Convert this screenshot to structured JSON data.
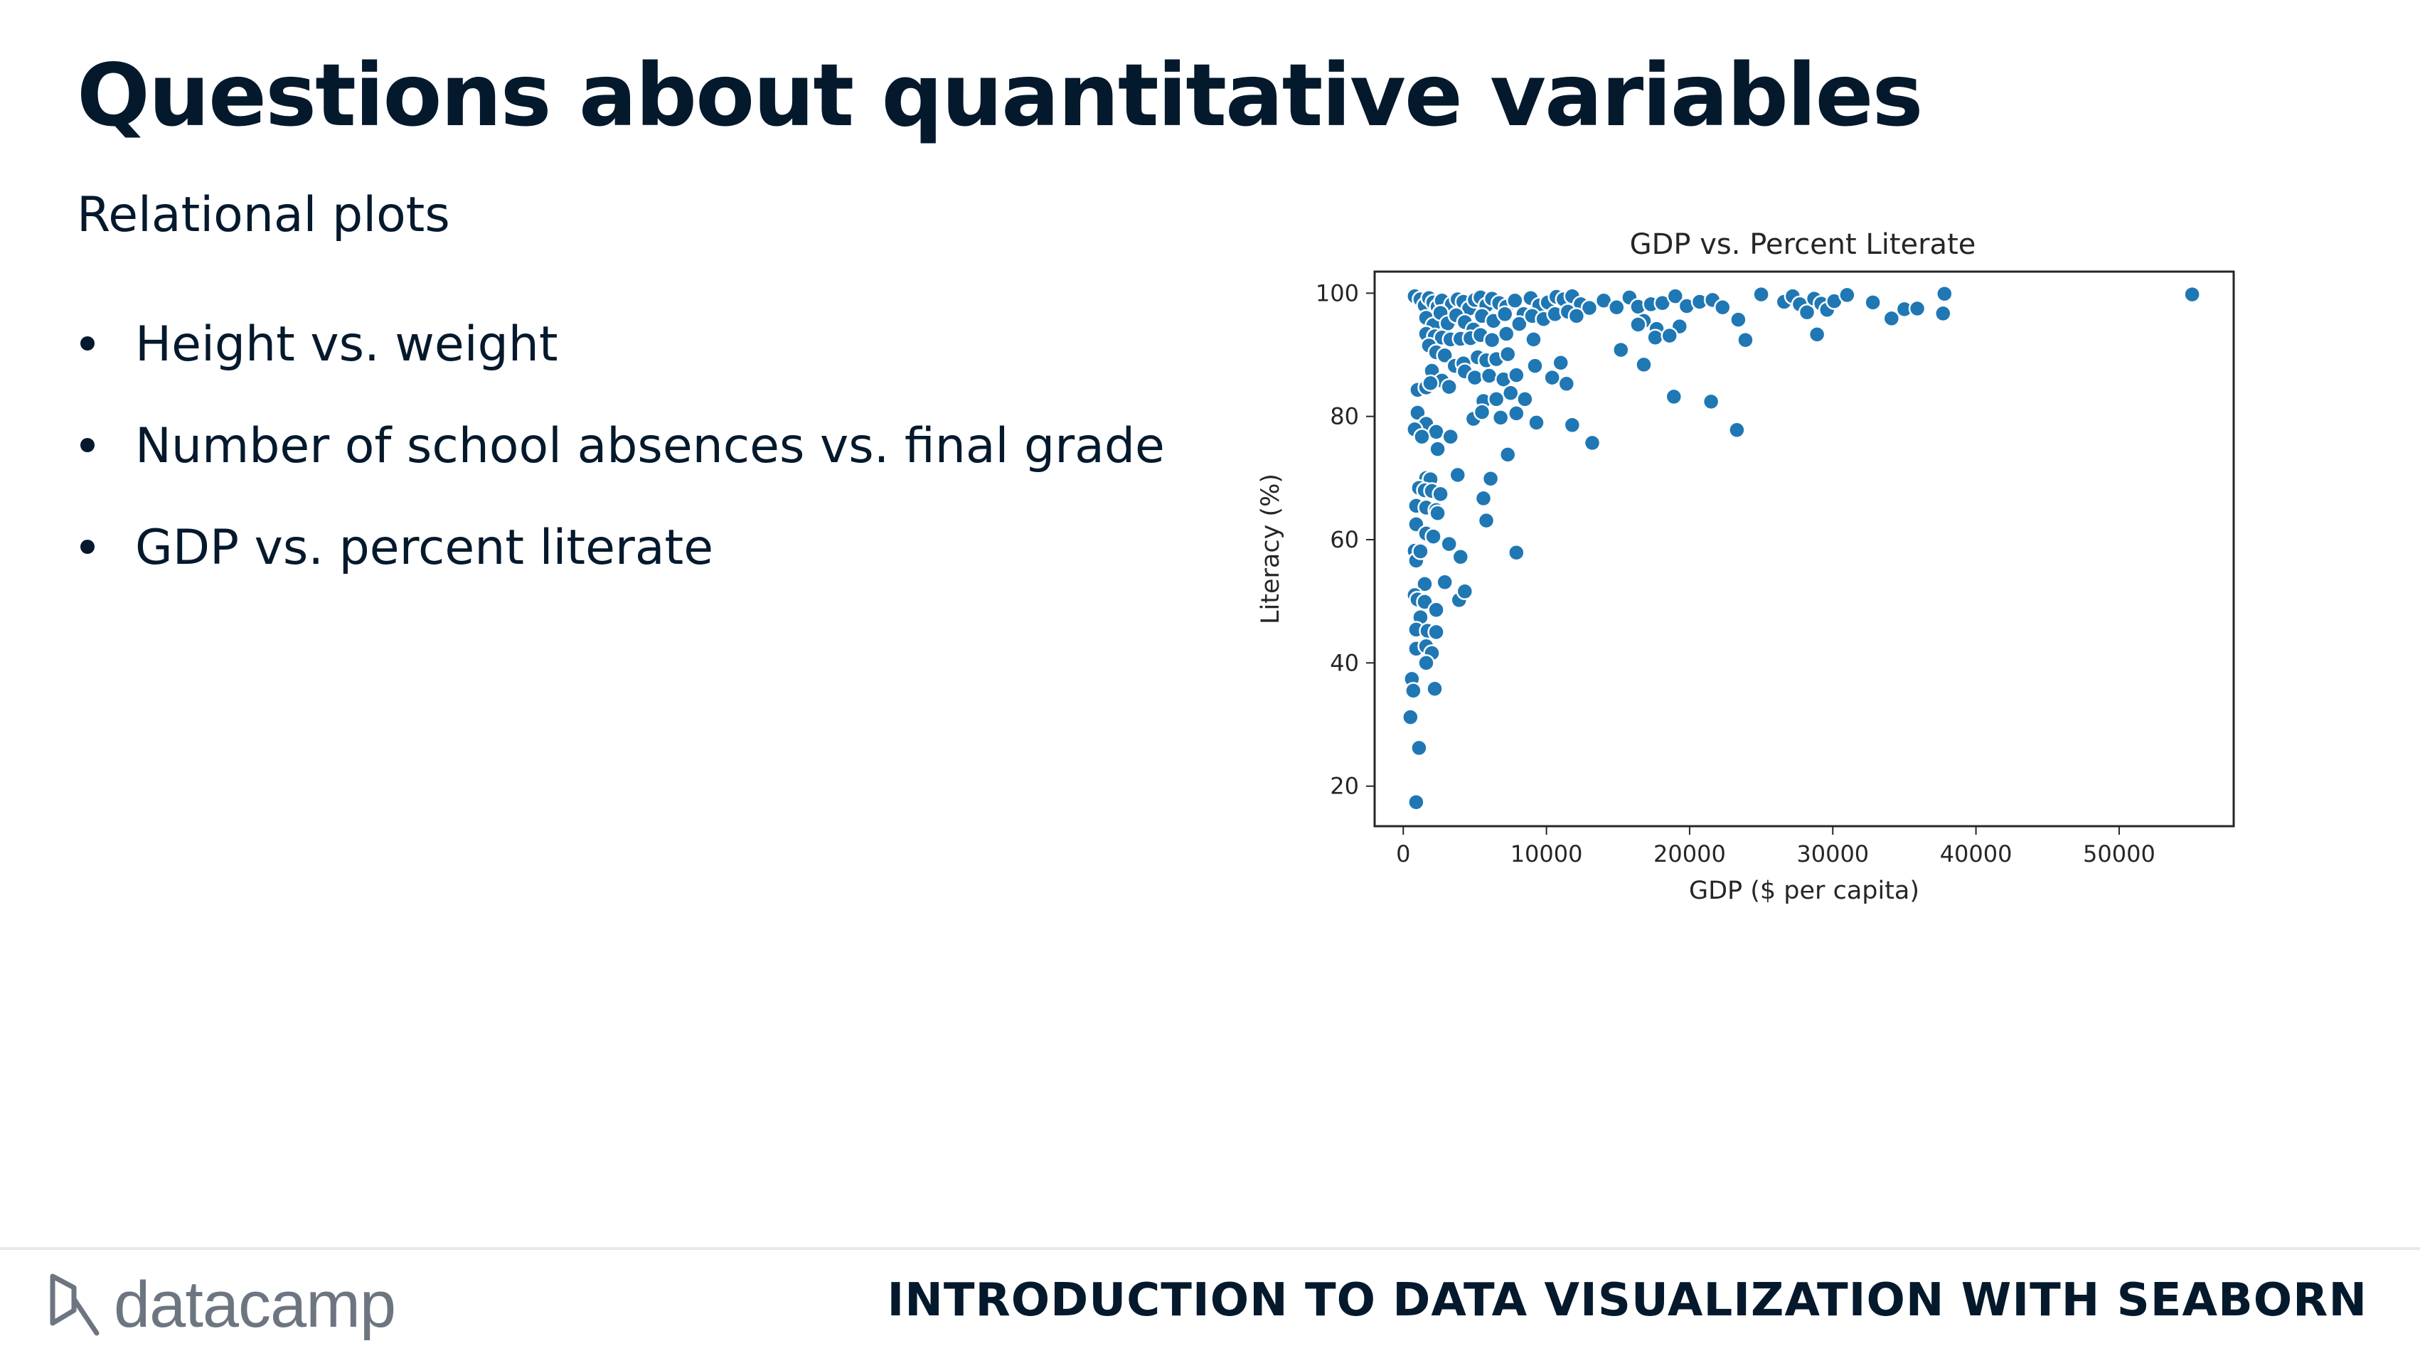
{
  "slide": {
    "title": "Questions about quantitative variables",
    "subtitle": "Relational plots",
    "bullets": [
      "Height vs. weight",
      "Number of school absences vs. final grade",
      "GDP vs. percent literate"
    ]
  },
  "footer": {
    "logo_text": "datacamp",
    "course_title": "INTRODUCTION TO DATA VISUALIZATION WITH SEABORN"
  },
  "colors": {
    "text": "#05192d",
    "marker": "#1f77b4",
    "logo": "#6d7680"
  },
  "chart_data": {
    "type": "scatter",
    "title": "GDP vs. Percent Literate",
    "xlabel": "GDP ($ per capita)",
    "ylabel": "Literacy (%)",
    "xlim": [
      -2000,
      58000
    ],
    "ylim": [
      13.5,
      103.5
    ],
    "xticks": [
      0,
      10000,
      20000,
      30000,
      40000,
      50000
    ],
    "yticks": [
      20,
      40,
      60,
      80,
      100
    ],
    "grid": false,
    "legend": "none",
    "series": [
      {
        "points": [
          [
            800,
            99.5
          ],
          [
            1200,
            99
          ],
          [
            1500,
            98
          ],
          [
            1800,
            99.2
          ],
          [
            2100,
            98.5
          ],
          [
            2400,
            97.8
          ],
          [
            2700,
            98.8
          ],
          [
            3000,
            97
          ],
          [
            3400,
            98.2
          ],
          [
            3800,
            99
          ],
          [
            4200,
            98.6
          ],
          [
            4600,
            97.5
          ],
          [
            5000,
            98.9
          ],
          [
            5400,
            99.3
          ],
          [
            5800,
            98
          ],
          [
            6200,
            99.1
          ],
          [
            6700,
            98.4
          ],
          [
            7200,
            97.8
          ],
          [
            7800,
            98.8
          ],
          [
            8400,
            96.6
          ],
          [
            8900,
            99.2
          ],
          [
            9500,
            98
          ],
          [
            10100,
            98.5
          ],
          [
            10700,
            99.4
          ],
          [
            11200,
            99
          ],
          [
            11800,
            99.5
          ],
          [
            12400,
            98.2
          ],
          [
            13000,
            97.6
          ],
          [
            14000,
            98.8
          ],
          [
            14900,
            97.7
          ],
          [
            15800,
            99.3
          ],
          [
            16400,
            97.8
          ],
          [
            17300,
            98.2
          ],
          [
            18100,
            98.4
          ],
          [
            19000,
            99.5
          ],
          [
            19800,
            97.9
          ],
          [
            20700,
            98.6
          ],
          [
            21600,
            98.9
          ],
          [
            22300,
            97.7
          ],
          [
            23400,
            95.7
          ],
          [
            25000,
            99.8
          ],
          [
            26600,
            98.6
          ],
          [
            27200,
            99.5
          ],
          [
            27700,
            98.2
          ],
          [
            28200,
            96.9
          ],
          [
            28700,
            99.1
          ],
          [
            29200,
            98.3
          ],
          [
            29600,
            97.3
          ],
          [
            30100,
            98.7
          ],
          [
            31000,
            99.7
          ],
          [
            32800,
            98.5
          ],
          [
            34100,
            95.9
          ],
          [
            35000,
            97.4
          ],
          [
            35900,
            97.5
          ],
          [
            37800,
            99.9
          ],
          [
            37700,
            96.7
          ],
          [
            55100,
            99.8
          ],
          [
            1600,
            96
          ],
          [
            2100,
            94.8
          ],
          [
            2600,
            96.8
          ],
          [
            3100,
            95.1
          ],
          [
            3700,
            96.4
          ],
          [
            4300,
            95.3
          ],
          [
            4900,
            94.1
          ],
          [
            5500,
            96.3
          ],
          [
            6300,
            95.5
          ],
          [
            7100,
            96.6
          ],
          [
            8100,
            95
          ],
          [
            9000,
            96.3
          ],
          [
            9800,
            95.8
          ],
          [
            10600,
            96.6
          ],
          [
            11500,
            97
          ],
          [
            12100,
            96.3
          ],
          [
            16800,
            95.5
          ],
          [
            17700,
            94.2
          ],
          [
            19300,
            94.6
          ],
          [
            1600,
            93.4
          ],
          [
            2200,
            93
          ],
          [
            2700,
            92.8
          ],
          [
            3300,
            92.5
          ],
          [
            4000,
            92.6
          ],
          [
            4700,
            92.7
          ],
          [
            5400,
            93.2
          ],
          [
            6200,
            92.4
          ],
          [
            7200,
            93.4
          ],
          [
            9100,
            92.5
          ],
          [
            15200,
            90.8
          ],
          [
            16400,
            94.9
          ],
          [
            17600,
            92.8
          ],
          [
            18600,
            93.1
          ],
          [
            23900,
            92.4
          ],
          [
            28900,
            93.3
          ],
          [
            1800,
            91.5
          ],
          [
            2300,
            90.4
          ],
          [
            2900,
            89.9
          ],
          [
            3600,
            88.2
          ],
          [
            4200,
            88.6
          ],
          [
            5200,
            89.6
          ],
          [
            5800,
            89.1
          ],
          [
            6500,
            89.3
          ],
          [
            7300,
            90.1
          ],
          [
            9200,
            88.2
          ],
          [
            10400,
            86.3
          ],
          [
            11000,
            88.7
          ],
          [
            11400,
            85.3
          ],
          [
            16800,
            88.4
          ],
          [
            2000,
            87.4
          ],
          [
            2700,
            85.8
          ],
          [
            3200,
            84.8
          ],
          [
            4300,
            87.3
          ],
          [
            5000,
            86.3
          ],
          [
            6000,
            86.6
          ],
          [
            7000,
            86
          ],
          [
            7900,
            86.7
          ],
          [
            1000,
            84.3
          ],
          [
            1600,
            84.7
          ],
          [
            1900,
            85.4
          ],
          [
            5600,
            82.5
          ],
          [
            6500,
            82.8
          ],
          [
            7500,
            83.8
          ],
          [
            8500,
            82.8
          ],
          [
            18900,
            83.2
          ],
          [
            21500,
            82.4
          ],
          [
            4900,
            79.6
          ],
          [
            5500,
            80.7
          ],
          [
            6800,
            79.8
          ],
          [
            7900,
            80.5
          ],
          [
            1000,
            80.6
          ],
          [
            1600,
            78.8
          ],
          [
            2300,
            77.5
          ],
          [
            9300,
            79
          ],
          [
            11800,
            78.6
          ],
          [
            13200,
            75.7
          ],
          [
            23300,
            77.8
          ],
          [
            800,
            77.9
          ],
          [
            1300,
            76.7
          ],
          [
            2400,
            74.7
          ],
          [
            3300,
            76.7
          ],
          [
            7300,
            73.8
          ],
          [
            1600,
            70
          ],
          [
            1900,
            69.8
          ],
          [
            3800,
            70.5
          ],
          [
            6100,
            69.9
          ],
          [
            1100,
            68.4
          ],
          [
            1500,
            68
          ],
          [
            2000,
            67.9
          ],
          [
            2600,
            67.4
          ],
          [
            5600,
            66.7
          ],
          [
            900,
            65.5
          ],
          [
            1600,
            65.2
          ],
          [
            2300,
            64.8
          ],
          [
            2400,
            64.3
          ],
          [
            5800,
            63.1
          ],
          [
            900,
            62.5
          ],
          [
            1600,
            61
          ],
          [
            2100,
            60.5
          ],
          [
            3200,
            59.3
          ],
          [
            800,
            58.2
          ],
          [
            900,
            56.6
          ],
          [
            1200,
            58.1
          ],
          [
            4000,
            57.2
          ],
          [
            7900,
            57.9
          ],
          [
            1500,
            52.8
          ],
          [
            2900,
            53.1
          ],
          [
            3900,
            50.2
          ],
          [
            4300,
            51.6
          ],
          [
            800,
            51
          ],
          [
            1000,
            50.3
          ],
          [
            1500,
            49.9
          ],
          [
            2300,
            48.6
          ],
          [
            1200,
            47.4
          ],
          [
            900,
            45.4
          ],
          [
            1700,
            45.2
          ],
          [
            2300,
            45
          ],
          [
            900,
            42.3
          ],
          [
            1600,
            42.7
          ],
          [
            2000,
            41.6
          ],
          [
            1600,
            40
          ],
          [
            600,
            37.4
          ],
          [
            700,
            35.5
          ],
          [
            2200,
            35.8
          ],
          [
            500,
            31.2
          ],
          [
            1100,
            26.2
          ],
          [
            900,
            17.4
          ]
        ]
      }
    ]
  }
}
